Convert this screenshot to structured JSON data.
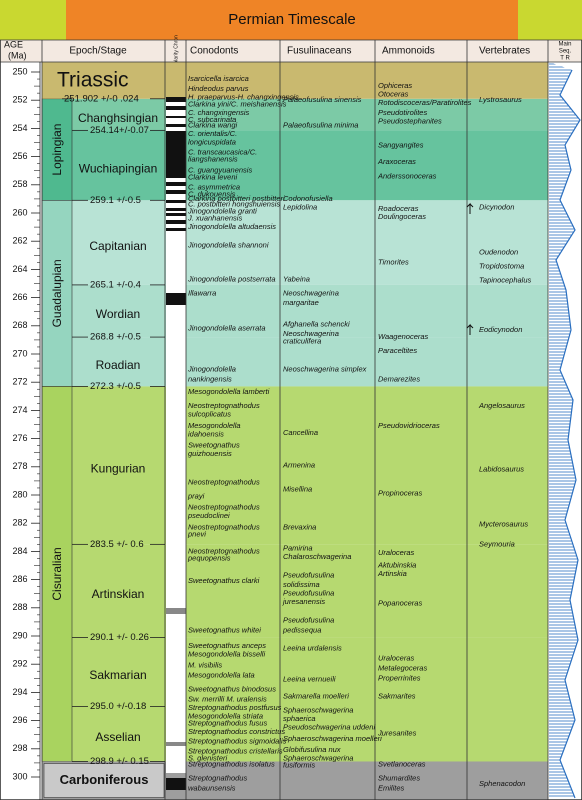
{
  "title": "Permian Timescale",
  "headers": {
    "age": "AGE",
    "age_unit": "(Ma)",
    "epoch_stage": "Epoch/Stage",
    "polarity": "Polarity Chron",
    "sea_level": "Main",
    "sea_level_2": "Seq.",
    "sea_level_3": "T  R"
  },
  "age_ticks": [
    250,
    252,
    254,
    256,
    258,
    260,
    262,
    264,
    266,
    268,
    270,
    272,
    274,
    276,
    278,
    280,
    282,
    284,
    286,
    288,
    290,
    292,
    294,
    296,
    298,
    300
  ],
  "periods": [
    {
      "name": "Triassic",
      "top": 249.3,
      "base": 251.9,
      "color": "#c9b96f"
    },
    {
      "name": "Carboniferous",
      "top": 298.9,
      "base": 301.6,
      "color": "#9e9e9e"
    }
  ],
  "epochs": [
    {
      "name": "Lopingian",
      "top": 251.9,
      "base": 259.1,
      "color": "#4fb98f"
    },
    {
      "name": "Guadalupian",
      "top": 259.1,
      "base": 272.3,
      "color": "#95d5bf"
    },
    {
      "name": "Cisuralian",
      "top": 272.3,
      "base": 298.9,
      "color": "#a9d35f"
    }
  ],
  "stages": [
    {
      "name": "Changhsingian",
      "top": 251.9,
      "base": 254.14,
      "color": "#7ccaa6"
    },
    {
      "name": "Wuchiapingian",
      "top": 254.14,
      "base": 259.1,
      "color": "#66c39e"
    },
    {
      "name": "Capitanian",
      "top": 259.1,
      "base": 265.1,
      "color": "#b8e3d5"
    },
    {
      "name": "Wordian",
      "top": 265.1,
      "base": 268.8,
      "color": "#acdecc"
    },
    {
      "name": "Roadian",
      "top": 268.8,
      "base": 272.3,
      "color": "#acdecc"
    },
    {
      "name": "Kungurian",
      "top": 272.3,
      "base": 283.5,
      "color": "#b6d970"
    },
    {
      "name": "Artinskian",
      "top": 283.5,
      "base": 290.1,
      "color": "#b6d970"
    },
    {
      "name": "Sakmarian",
      "top": 290.1,
      "base": 295.0,
      "color": "#b6d970"
    },
    {
      "name": "Asselian",
      "top": 295.0,
      "base": 298.9,
      "color": "#b6d970"
    }
  ],
  "boundaries": [
    {
      "age": 251.9,
      "label": "251.902 +/-0 .024"
    },
    {
      "age": 254.14,
      "label": "254.14+/-0.07"
    },
    {
      "age": 259.1,
      "label": "259.1 +/-0.5"
    },
    {
      "age": 265.1,
      "label": "265.1 +/-0.4"
    },
    {
      "age": 268.8,
      "label": "268.8 +/-0.5"
    },
    {
      "age": 272.3,
      "label": "272.3 +/-0.5"
    },
    {
      "age": 283.5,
      "label": "283.5 +/- 0.6"
    },
    {
      "age": 290.1,
      "label": "290.1 +/- 0.26"
    },
    {
      "age": 295.0,
      "label": "295.0 +/-0.18"
    },
    {
      "age": 298.9,
      "label": "298.9 +/- 0.15"
    }
  ],
  "columns": [
    {
      "name": "Conodonts",
      "entries": [
        {
          "text": "Isarcicella isarcica",
          "age": 250.5
        },
        {
          "text": "Hindeodus parvus",
          "age": 251.2
        },
        {
          "text": "H. praeparvus-H. changxingensis",
          "age": 251.8
        },
        {
          "text": "Clarkina yini/C. meishanensis",
          "age": 252.3
        },
        {
          "text": "C. changxingensis",
          "age": 252.9
        },
        {
          "text": "C. subcarinata",
          "age": 253.4
        },
        {
          "text": "Clarkina wangi",
          "age": 253.8
        },
        {
          "text": "C. orientalis/C.",
          "age": 254.4
        },
        {
          "text": "longicuspidata",
          "age": 255.0
        },
        {
          "text": "C. transcaucasica/C.",
          "age": 255.7
        },
        {
          "text": "liangshanensis",
          "age": 256.2
        },
        {
          "text": "C. guangyuanensis",
          "age": 257.0
        },
        {
          "text": "Clarkina leveni",
          "age": 257.5
        },
        {
          "text": "C. asymmetrica",
          "age": 258.2
        },
        {
          "text": "C. dukouensis",
          "age": 258.7
        },
        {
          "text": "Clarkina postbitteri postbitteri",
          "age": 259.0
        },
        {
          "text": "C. postbitteri hongshuiensis",
          "age": 259.4
        },
        {
          "text": "Jinogondolella granti",
          "age": 259.9
        },
        {
          "text": "J. xuanhanensis",
          "age": 260.4
        },
        {
          "text": "Jinogondolella altudaensis",
          "age": 261.0
        },
        {
          "text": "Jinogondolella shannoni",
          "age": 262.3
        },
        {
          "text": "Jinogondolella postserrata",
          "age": 264.7
        },
        {
          "text": "Illawarra",
          "age": 265.7
        },
        {
          "text": "Jinogondolella aserrata",
          "age": 268.2
        },
        {
          "text": "Jinogondolella",
          "age": 271.1
        },
        {
          "text": "nankingensis",
          "age": 271.8
        },
        {
          "text": "Mesogondolella lamberti",
          "age": 272.7
        },
        {
          "text": "Neostreptognathodus",
          "age": 273.7
        },
        {
          "text": "sulcoplicatus",
          "age": 274.3
        },
        {
          "text": "Mesogondolella",
          "age": 275.1
        },
        {
          "text": "idahoensis",
          "age": 275.7
        },
        {
          "text": "Sweetognathus",
          "age": 276.5
        },
        {
          "text": "guizhouensis",
          "age": 277.1
        },
        {
          "text": "Neostreptognathodus",
          "age": 279.1
        },
        {
          "text": "prayi",
          "age": 280.1
        },
        {
          "text": "Neostreptognathodus",
          "age": 280.9
        },
        {
          "text": "pseudoclinei",
          "age": 281.5
        },
        {
          "text": "Neostreptognathodus",
          "age": 282.3
        },
        {
          "text": "pnevi",
          "age": 282.8
        },
        {
          "text": "Neostreptognathodus",
          "age": 284.0
        },
        {
          "text": "pequopensis",
          "age": 284.5
        },
        {
          "text": "Sweetognathus clarki",
          "age": 286.1
        },
        {
          "text": "Sweetognathus whitei",
          "age": 289.6
        },
        {
          "text": "Sweetognathus anceps",
          "age": 290.7
        },
        {
          "text": "Mesogondolella bisselli",
          "age": 291.3
        },
        {
          "text": "M. visibilis",
          "age": 292.1
        },
        {
          "text": "Mesogondolella lata",
          "age": 292.8
        },
        {
          "text": "Sweetognathus binodosus",
          "age": 293.8
        },
        {
          "text": "Sw. merrilli   M. uralensis",
          "age": 294.5
        },
        {
          "text": "Streptognathodus postfusus",
          "age": 295.1
        },
        {
          "text": "Mesogondolella striata",
          "age": 295.7
        },
        {
          "text": "Streptognathodus fusus",
          "age": 296.2
        },
        {
          "text": "Streptognathodus constrictus",
          "age": 296.8
        },
        {
          "text": "Streptognathodus sigmoidalis",
          "age": 297.5
        },
        {
          "text": "Streptognathodus cristellaris",
          "age": 298.2
        },
        {
          "text": "S. glenisteri",
          "age": 298.7
        },
        {
          "text": "Streptognathodus isolatus",
          "age": 299.1
        },
        {
          "text": "Streptognathodus",
          "age": 300.1
        },
        {
          "text": "wabaunsensis",
          "age": 300.8
        }
      ]
    },
    {
      "name": "Fusulinaceans",
      "entries": [
        {
          "text": "Palaeofusulina sinensis",
          "age": 252.0
        },
        {
          "text": "Palaeofusulina minima",
          "age": 253.8
        },
        {
          "text": "Codonofusiella",
          "age": 259.0
        },
        {
          "text": "Lepidolina",
          "age": 259.6
        },
        {
          "text": "Yabeina",
          "age": 264.7
        },
        {
          "text": "Neoschwagerina",
          "age": 265.7
        },
        {
          "text": "margaritae",
          "age": 266.4
        },
        {
          "text": "Afghanella schencki",
          "age": 267.9
        },
        {
          "text": "Neoschwagerina",
          "age": 268.6
        },
        {
          "text": "craticulifera",
          "age": 269.1
        },
        {
          "text": "Neoschwagerina simplex",
          "age": 271.1
        },
        {
          "text": "Cancellina",
          "age": 275.6
        },
        {
          "text": "Armenina",
          "age": 277.9
        },
        {
          "text": "Misellina",
          "age": 279.6
        },
        {
          "text": "Brevaxina",
          "age": 282.3
        },
        {
          "text": "Pamirina",
          "age": 283.8
        },
        {
          "text": "Chalaroschwagerina",
          "age": 284.4
        },
        {
          "text": "Pseudofusulina",
          "age": 285.7
        },
        {
          "text": "solidissima",
          "age": 286.4
        },
        {
          "text": "Pseudofusulina",
          "age": 287.0
        },
        {
          "text": "juresanensis",
          "age": 287.6
        },
        {
          "text": "Pseudofusulina",
          "age": 288.9
        },
        {
          "text": "pedissequa",
          "age": 289.6
        },
        {
          "text": "Leeina urdalensis",
          "age": 290.9
        },
        {
          "text": "Leeina vernueili",
          "age": 293.1
        },
        {
          "text": "Sakmarella moelleri",
          "age": 294.3
        },
        {
          "text": "Sphaeroschwagerina",
          "age": 295.3
        },
        {
          "text": "sphaerica",
          "age": 295.9
        },
        {
          "text": "Pseudoschwagerina uddeni",
          "age": 296.5
        },
        {
          "text": "Sphaeroschwagerina moelleri",
          "age": 297.3
        },
        {
          "text": "Globifusulina nux",
          "age": 298.1
        },
        {
          "text": "Sphaeroschwagerina",
          "age": 298.7
        },
        {
          "text": "fusiformis",
          "age": 299.2
        }
      ]
    },
    {
      "name": "Ammonoids",
      "entries": [
        {
          "text": "Ophiceras",
          "age": 251.0
        },
        {
          "text": "Otoceras",
          "age": 251.6
        },
        {
          "text": "Rotodiscoceras/Paratirolites",
          "age": 252.2
        },
        {
          "text": "Pseudotirolites",
          "age": 252.9
        },
        {
          "text": "Pseudostephanites",
          "age": 253.5
        },
        {
          "text": "Sangyangites",
          "age": 255.2
        },
        {
          "text": "Araxoceras",
          "age": 256.4
        },
        {
          "text": "Anderssonoceras",
          "age": 257.4
        },
        {
          "text": "Roadoceras",
          "age": 259.7
        },
        {
          "text": "Doulingoceras",
          "age": 260.3
        },
        {
          "text": "Timorites",
          "age": 263.5
        },
        {
          "text": "Waagenoceras",
          "age": 268.8
        },
        {
          "text": "Paraceltites",
          "age": 269.8
        },
        {
          "text": "Demarezites",
          "age": 271.8
        },
        {
          "text": "Pseudovidrioceras",
          "age": 275.1
        },
        {
          "text": "Propinoceras",
          "age": 279.9
        },
        {
          "text": "Uraloceras",
          "age": 284.1
        },
        {
          "text": "Aktubinskia",
          "age": 285.0
        },
        {
          "text": "Artinskia",
          "age": 285.6
        },
        {
          "text": "Popanoceras",
          "age": 287.7
        },
        {
          "text": "Uraloceras",
          "age": 291.6
        },
        {
          "text": "Metalegoceras",
          "age": 292.3
        },
        {
          "text": "Properrinites",
          "age": 293.0
        },
        {
          "text": "Sakmarites",
          "age": 294.3
        },
        {
          "text": "Juresanites",
          "age": 296.9
        },
        {
          "text": "Svetlanoceras",
          "age": 299.1
        },
        {
          "text": "Shumardites",
          "age": 300.1
        },
        {
          "text": "Emilites",
          "age": 300.8
        }
      ]
    },
    {
      "name": "Vertebrates",
      "entries": [
        {
          "text": "Lystrosaurus",
          "age": 252.0
        },
        {
          "text": "Dicynodon",
          "age": 259.6
        },
        {
          "text": "Oudenodon",
          "age": 262.8
        },
        {
          "text": "Tropidostoma",
          "age": 263.8
        },
        {
          "text": "Tapinocephalus",
          "age": 264.8
        },
        {
          "text": "Eodicynodon",
          "age": 268.3
        },
        {
          "text": "Angelosaurus",
          "age": 273.7
        },
        {
          "text": "Labidosaurus",
          "age": 278.2
        },
        {
          "text": "Mycterosaurus",
          "age": 282.1
        },
        {
          "text": "Seymouria",
          "age": 283.5
        },
        {
          "text": "Sphenacodon",
          "age": 300.5
        }
      ]
    }
  ]
}
